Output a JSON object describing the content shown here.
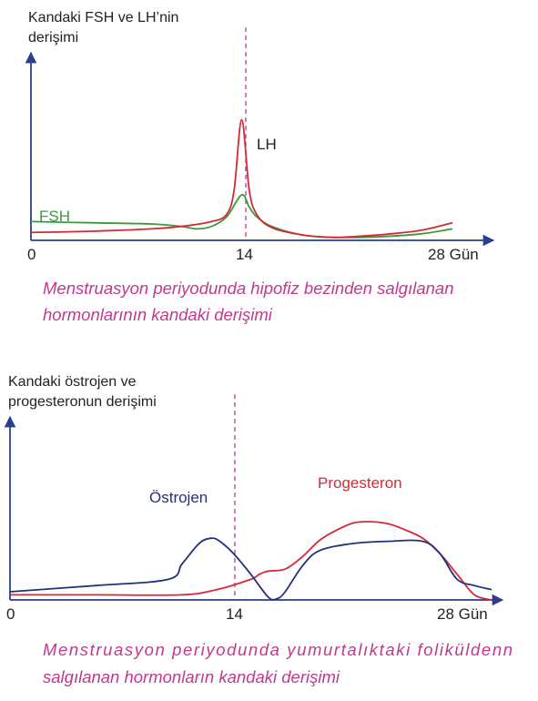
{
  "chart_data": [
    {
      "type": "line",
      "ylabel_lines": [
        "Kandaki FSH ve LH’nin",
        "derişimi"
      ],
      "xlabel": "Gün",
      "x_ticks": [
        "0",
        "14",
        "28 Gün"
      ],
      "xlim": [
        0,
        28
      ],
      "ylim": [
        0,
        100
      ],
      "reference_line_x": 14,
      "caption_lines": [
        "Menstruasyon periyodunda hipofiz bezinden salgılanan",
        "hormonlarının  kandaki derişimi"
      ],
      "series": [
        {
          "name": "LH",
          "color": "#d42a36",
          "x": [
            0,
            4,
            8,
            10,
            12,
            13,
            13.5,
            14,
            14.5,
            15,
            16,
            18,
            20,
            22,
            24,
            26,
            28
          ],
          "values": [
            5,
            6,
            8,
            10,
            14,
            20,
            40,
            98,
            40,
            20,
            9,
            3,
            1,
            2,
            4,
            7,
            13
          ]
        },
        {
          "name": "FSH",
          "color": "#3a9a3d",
          "x": [
            0,
            4,
            8,
            10,
            11,
            12,
            13,
            14,
            14.5,
            15,
            16,
            18,
            20,
            22,
            24,
            26,
            28
          ],
          "values": [
            14,
            13,
            12,
            10,
            8,
            10,
            18,
            36,
            26,
            18,
            10,
            3,
            1,
            1,
            2,
            4,
            8
          ]
        }
      ]
    },
    {
      "type": "line",
      "ylabel_lines": [
        "Kandaki östrojen ve",
        "progesteronun derişimi"
      ],
      "xlabel": "Gün",
      "x_ticks": [
        "0",
        "14",
        "28 Gün"
      ],
      "xlim": [
        0,
        28
      ],
      "ylim": [
        0,
        100
      ],
      "reference_line_x": 14,
      "caption_lines": [
        "Menstruasyon  periyodunda  yumurtalıktaki  foliküldenn",
        "salgılanan hormonların kandaki derişimi"
      ],
      "series": [
        {
          "name": "Östrojen",
          "color": "#25307d",
          "x": [
            0,
            5,
            9.2,
            10,
            11,
            11.7,
            12.2,
            13,
            14,
            15,
            15.5,
            16,
            17,
            18,
            20,
            22,
            24,
            25,
            26,
            27,
            28
          ],
          "values": [
            8,
            14,
            20,
            35,
            55,
            60,
            57,
            45,
            25,
            3,
            1,
            8,
            33,
            48,
            55,
            57,
            57,
            45,
            20,
            14,
            10
          ],
          "fit": "smooth"
        },
        {
          "name": "Progesteron",
          "color": "#d42a36",
          "x": [
            0,
            5,
            10,
            12,
            14,
            14.5,
            15,
            16,
            17,
            18,
            19,
            20,
            21,
            22,
            23,
            24,
            25,
            26,
            27,
            28
          ],
          "values": [
            5,
            5,
            5,
            10,
            20,
            25,
            28,
            30,
            42,
            58,
            68,
            75,
            76,
            74,
            68,
            60,
            45,
            25,
            5,
            0
          ]
        }
      ]
    }
  ]
}
